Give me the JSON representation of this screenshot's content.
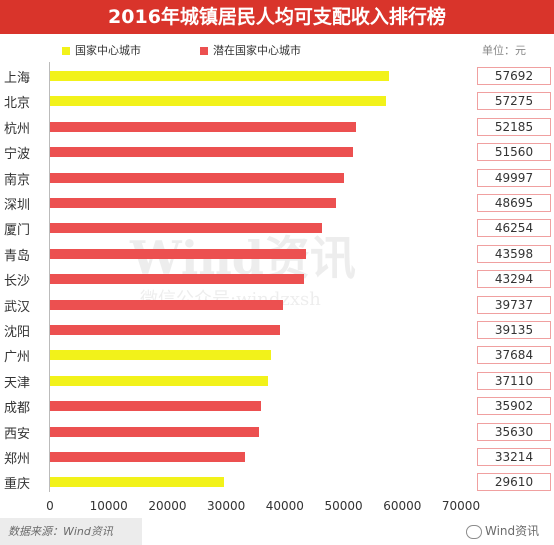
{
  "header": {
    "title": "2016年城镇居民人均可支配收入排行榜"
  },
  "legend": {
    "national_label": "国家中心城市",
    "potential_label": "潜在国家中心城市"
  },
  "unit_label": "单位：元",
  "watermark": {
    "main": "Wind资讯",
    "sub": "微信公众号:windzxsh"
  },
  "footer": {
    "source": "数据来源：Wind资讯",
    "logo": "Wind资讯"
  },
  "colors": {
    "national": "#f2f21a",
    "potential": "#ec5050",
    "title_bg": "#d9342b"
  },
  "chart_data": {
    "type": "bar",
    "orientation": "horizontal",
    "title": "2016年城镇居民人均可支配收入排行榜",
    "unit": "单位：元",
    "xlim": [
      0,
      70000
    ],
    "xticks": [
      "0",
      "10000",
      "20000",
      "30000",
      "40000",
      "50000",
      "60000",
      "70000"
    ],
    "categories": [
      "上海",
      "北京",
      "杭州",
      "宁波",
      "南京",
      "深圳",
      "厦门",
      "青岛",
      "长沙",
      "武汉",
      "沈阳",
      "广州",
      "天津",
      "成都",
      "西安",
      "郑州",
      "重庆"
    ],
    "values": [
      57692,
      57275,
      52185,
      51560,
      49997,
      48695,
      46254,
      43598,
      43294,
      39737,
      39135,
      37684,
      37110,
      35902,
      35630,
      33214,
      29610
    ],
    "groups": [
      "national",
      "national",
      "potential",
      "potential",
      "potential",
      "potential",
      "potential",
      "potential",
      "potential",
      "potential",
      "potential",
      "national",
      "national",
      "potential",
      "potential",
      "potential",
      "national"
    ],
    "legend_position": "top"
  }
}
